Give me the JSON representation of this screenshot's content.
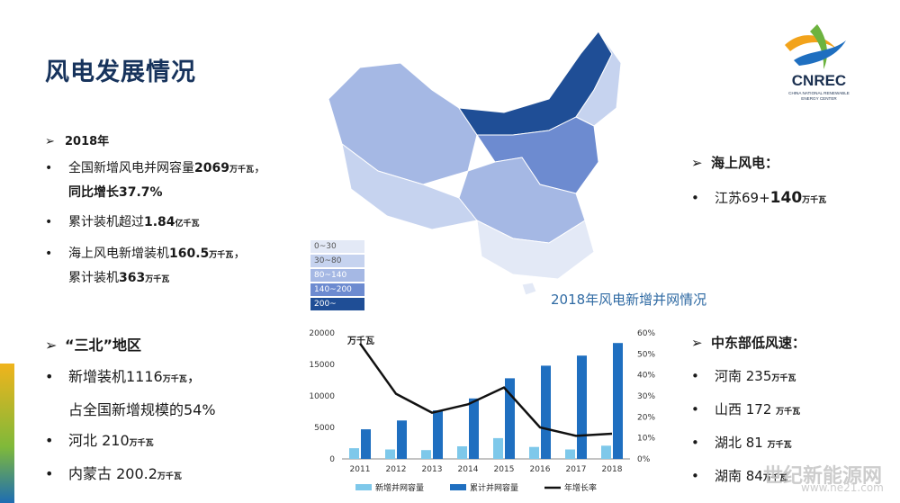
{
  "title": "风电发展情况",
  "left_section": {
    "year_label": "2018年",
    "items": [
      {
        "pre": "全国新增风电并网容量",
        "num": "2069",
        "unit": "万千瓦",
        "post": "，"
      },
      {
        "line2": "同比增长37.7%"
      },
      {
        "pre": "累计装机超过",
        "num": "1.84",
        "unit": "亿千瓦",
        "post": ""
      },
      {
        "pre": "海上风电新增装机",
        "num": "160.5",
        "unit": "万千瓦",
        "post": "，"
      },
      {
        "pre": "累计装机",
        "num": "363",
        "unit": "万千瓦",
        "post": ""
      }
    ]
  },
  "sanbei": {
    "heading": "“三北”地区",
    "items": [
      {
        "text": "新增装机1116",
        "unit": "万千瓦",
        "post": "，"
      },
      {
        "text": "占全国新增规模的54%",
        "unit": "",
        "post": ""
      },
      {
        "text": "河北 210",
        "unit": "万千瓦",
        "post": ""
      },
      {
        "text": "内蒙古 200.2",
        "unit": "万千瓦",
        "post": ""
      }
    ]
  },
  "offshore": {
    "heading": "海上风电：",
    "item_text": "江苏69+",
    "item_num": "140",
    "item_unit": "万千瓦"
  },
  "central": {
    "heading": "中东部低风速：",
    "items": [
      {
        "text": "河南 235",
        "unit": "万千瓦"
      },
      {
        "text": "山西 172 ",
        "unit": "万千瓦"
      },
      {
        "text": "湖北 81 ",
        "unit": "万千瓦"
      },
      {
        "text": "湖南 84",
        "unit": "万千瓦"
      }
    ]
  },
  "map_legend": [
    {
      "label": "0~30",
      "color": "#e3e9f6"
    },
    {
      "label": "30~80",
      "color": "#c6d3ef"
    },
    {
      "label": "80~140",
      "color": "#a5b8e4"
    },
    {
      "label": "140~200",
      "color": "#6d8bd0"
    },
    {
      "label": "200~",
      "color": "#1f4e96"
    }
  ],
  "logo_text": "CNREC",
  "logo_sub1": "CHINA NATIONAL RENEWABLE",
  "logo_sub2": "ENERGY CENTER",
  "watermark": "世纪新能源网",
  "watermark_sub": "www.ne21.com",
  "chart_data": {
    "type": "bar",
    "title": "2018年风电新增并网情况",
    "ylabel_left": "万千瓦",
    "categories": [
      "2011",
      "2012",
      "2013",
      "2014",
      "2015",
      "2016",
      "2017",
      "2018"
    ],
    "ylim_left": [
      0,
      20000
    ],
    "yticks_left": [
      "0",
      "5000",
      "10000",
      "15000",
      "20000"
    ],
    "ylim_right": [
      0,
      60
    ],
    "yticks_right": [
      "0%",
      "10%",
      "20%",
      "30%",
      "40%",
      "50%",
      "60%"
    ],
    "series": [
      {
        "name": "新增并网容量",
        "type": "bar",
        "axis": "left",
        "color": "#7ec8ea",
        "values": [
          1700,
          1500,
          1400,
          2000,
          3300,
          1900,
          1500,
          2100
        ]
      },
      {
        "name": "累计并网容量",
        "type": "bar",
        "axis": "left",
        "color": "#1f6fc0",
        "values": [
          4700,
          6100,
          7700,
          9600,
          12800,
          14800,
          16400,
          18400
        ]
      },
      {
        "name": "年增长率",
        "type": "line",
        "axis": "right",
        "color": "#111111",
        "values": [
          55,
          31,
          22,
          26,
          34,
          15,
          11,
          12
        ]
      }
    ],
    "legend_position": "bottom"
  }
}
